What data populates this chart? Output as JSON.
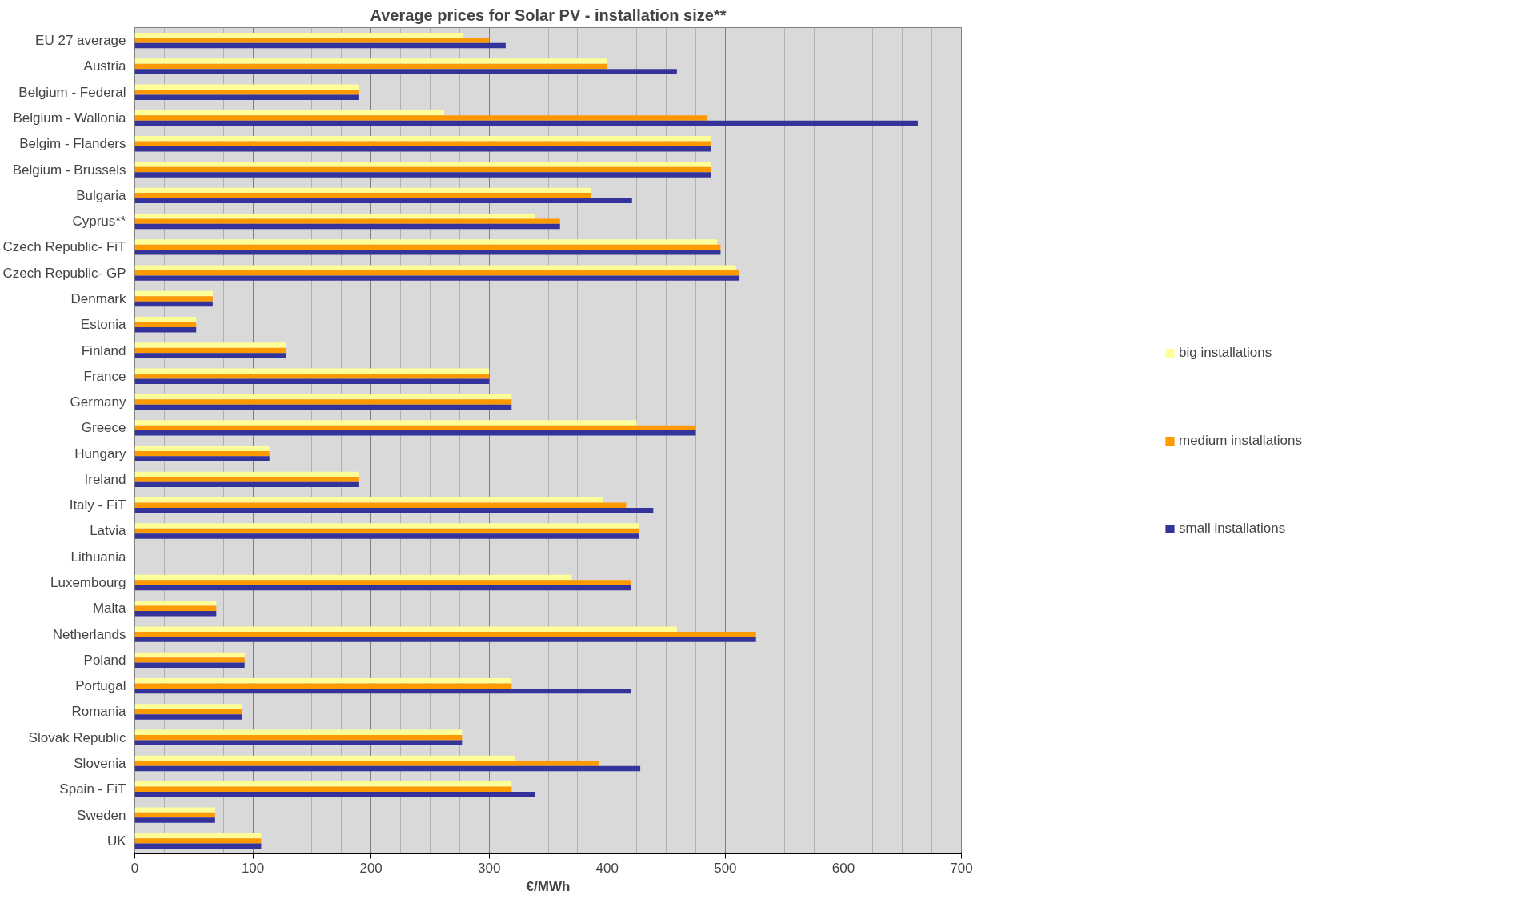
{
  "chart_data": {
    "type": "bar",
    "orientation": "horizontal",
    "title": "Average prices for Solar PV - installation size**",
    "xlabel": "€/MWh",
    "categories": [
      "EU 27 average",
      "Austria",
      "Belgium - Federal",
      "Belgium - Wallonia",
      "Belgim - Flanders",
      "Belgium - Brussels",
      "Bulgaria",
      "Cyprus**",
      "Czech Republic- FiT",
      "Czech Republic- GP",
      "Denmark",
      "Estonia",
      "Finland",
      "France",
      "Germany",
      "Greece",
      "Hungary",
      "Ireland",
      "Italy - FiT",
      "Latvia",
      "Lithuania",
      "Luxembourg",
      "Malta",
      "Netherlands",
      "Poland",
      "Portugal",
      "Romania",
      "Slovak Republic",
      "Slovenia",
      "Spain - FiT",
      "Sweden",
      "UK"
    ],
    "series": [
      {
        "name": "big installations",
        "color": "#ffff99",
        "values": [
          278,
          400,
          190,
          262,
          488,
          488,
          386,
          339,
          493,
          509,
          66,
          52,
          128,
          300,
          319,
          425,
          114,
          190,
          396,
          427,
          null,
          370,
          69,
          459,
          93,
          319,
          91,
          277,
          322,
          319,
          68,
          107
        ]
      },
      {
        "name": "medium installations",
        "color": "#ff9900",
        "values": [
          300,
          400,
          190,
          485,
          488,
          488,
          386,
          360,
          496,
          512,
          66,
          52,
          128,
          300,
          319,
          475,
          114,
          190,
          416,
          427,
          null,
          420,
          69,
          526,
          93,
          319,
          91,
          277,
          393,
          319,
          68,
          107
        ]
      },
      {
        "name": "small installations",
        "color": "#333399",
        "values": [
          314,
          459,
          190,
          663,
          488,
          488,
          421,
          360,
          496,
          512,
          66,
          52,
          128,
          300,
          319,
          475,
          114,
          190,
          439,
          427,
          null,
          420,
          69,
          526,
          93,
          420,
          91,
          277,
          428,
          339,
          68,
          107
        ]
      }
    ],
    "xlim": [
      0,
      700
    ],
    "xticks": [
      0,
      100,
      200,
      300,
      400,
      500,
      600,
      700
    ],
    "grid": "x",
    "legend": "right"
  }
}
